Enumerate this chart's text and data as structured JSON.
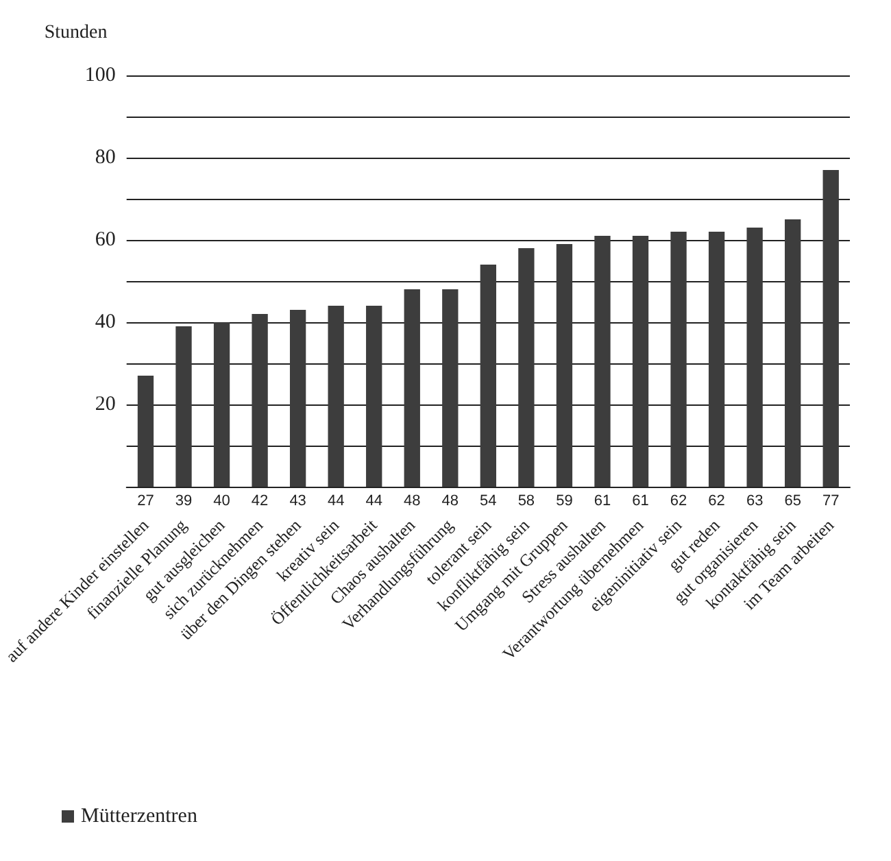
{
  "chart_data": {
    "type": "bar",
    "ylabel": "Stunden",
    "categories": [
      "auf andere Kinder einstellen",
      "finanzielle Planung",
      "gut ausgleichen",
      "sich zurücknehmen",
      "über den Dingen stehen",
      "kreativ sein",
      "Öffentlichkeitsarbeit",
      "Chaos aushalten",
      "Verhandlungsführung",
      "tolerant sein",
      "konfliktfähig sein",
      "Umgang mit Gruppen",
      "Stress aushalten",
      "Verantwortung übernehmen",
      "eigeninitiativ sein",
      "gut reden",
      "gut organisieren",
      "kontaktfähig sein",
      "im Team arbeiten"
    ],
    "series": [
      {
        "name": "Mütterzentren",
        "color": "#3d3d3d",
        "values": [
          27,
          39,
          40,
          42,
          43,
          44,
          44,
          48,
          48,
          54,
          58,
          59,
          61,
          61,
          62,
          62,
          63,
          65,
          77
        ]
      }
    ],
    "ylim": [
      0,
      100
    ],
    "yticks": [
      {
        "value": 0,
        "label": null
      },
      {
        "value": 10,
        "label": null
      },
      20,
      {
        "value": 30,
        "label": null
      },
      40,
      {
        "value": 50,
        "label": null
      },
      60,
      {
        "value": 70,
        "label": null
      },
      80,
      {
        "value": 90,
        "label": null
      },
      100
    ],
    "grid": "y",
    "legend": "bottom left",
    "data_labels": true
  }
}
